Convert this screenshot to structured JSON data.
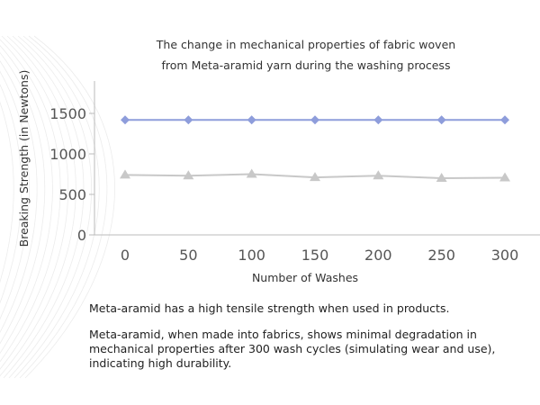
{
  "chart_data": {
    "type": "line",
    "title": "The change in mechanical properties of fabric woven",
    "subtitle": "from Meta-aramid yarn during the washing process",
    "xlabel": "Number of Washes",
    "ylabel": "Breaking Strength (in Newtons)",
    "categories": [
      "0",
      "50",
      "100",
      "150",
      "200",
      "250",
      "300"
    ],
    "x": [
      0,
      50,
      100,
      150,
      200,
      250,
      300
    ],
    "yticks": [
      0,
      500,
      1000,
      1500
    ],
    "ylim": [
      0,
      1900
    ],
    "grid": false,
    "series": [
      {
        "marker": "diamond",
        "color": "#8e9ddb",
        "values": [
          1420,
          1420,
          1420,
          1420,
          1420,
          1420,
          1420
        ]
      },
      {
        "marker": "triangle",
        "color": "#c8c8c8",
        "values": [
          740,
          730,
          750,
          710,
          730,
          700,
          705
        ]
      }
    ]
  },
  "notes": [
    "Meta-aramid has a high tensile strength when used in products.",
    "Meta-aramid, when made into fabrics, shows minimal degradation in mechanical properties after 300 wash cycles (simulating wear and use), indicating high durability."
  ],
  "colors": {
    "axis": "#bbbbbb",
    "text": "#333333"
  }
}
